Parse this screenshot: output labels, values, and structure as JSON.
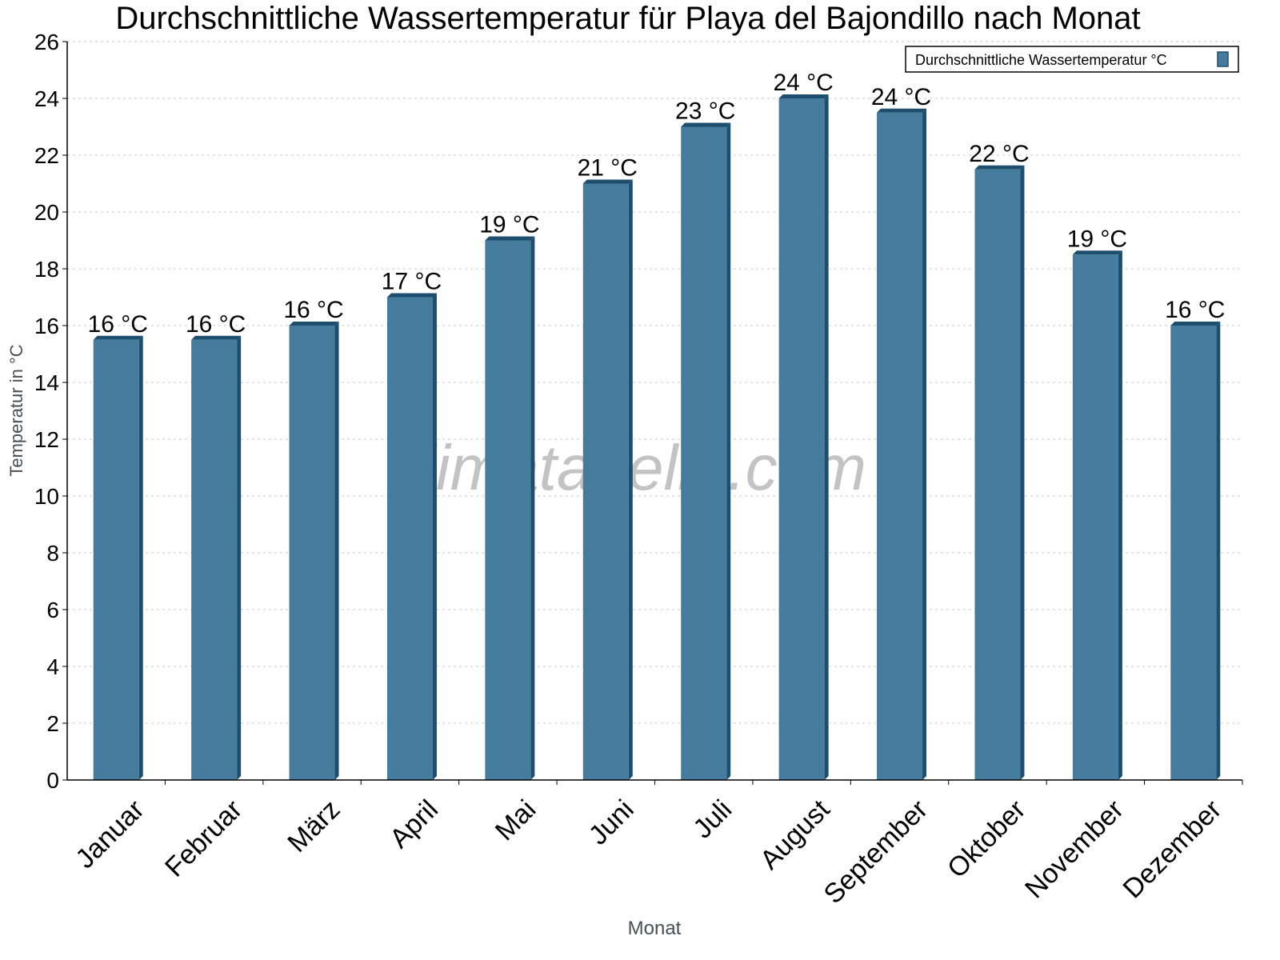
{
  "chart_data": {
    "type": "bar",
    "title": "Durchschnittliche Wassertemperatur für Playa del Bajondillo nach Monat",
    "xlabel": "Monat",
    "ylabel": "Temperatur in °C",
    "ylim": [
      0,
      26
    ],
    "yticks": [
      0,
      2,
      4,
      6,
      8,
      10,
      12,
      14,
      16,
      18,
      20,
      22,
      24,
      26
    ],
    "grid": true,
    "legend_placement": "top-right",
    "categories": [
      "Januar",
      "Februar",
      "März",
      "April",
      "Mai",
      "Juni",
      "Juli",
      "August",
      "September",
      "Oktober",
      "November",
      "Dezember"
    ],
    "series": [
      {
        "name": "Durchschnittliche Wassertemperatur °C",
        "values": [
          15.5,
          15.5,
          16,
          17,
          19,
          21,
          23,
          24,
          23.5,
          21.5,
          18.5,
          16
        ],
        "labels": [
          "16 °C",
          "16 °C",
          "16 °C",
          "17 °C",
          "19 °C",
          "21 °C",
          "23 °C",
          "24 °C",
          "24 °C",
          "22 °C",
          "19 °C",
          "16 °C"
        ],
        "color": "#457b9d",
        "shade_color": "#1d4e6e"
      }
    ],
    "watermark": "klimatabelle.com"
  }
}
